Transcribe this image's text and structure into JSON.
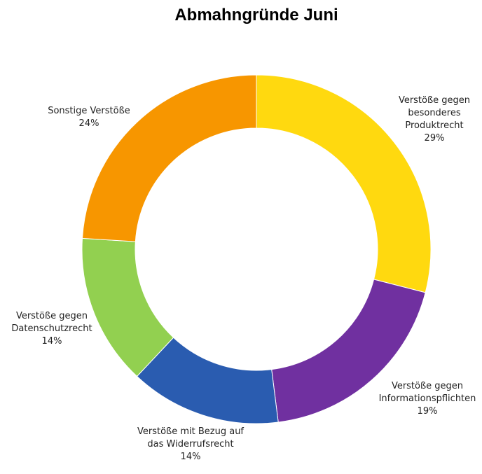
{
  "chart_data": {
    "type": "pie",
    "variant": "donut",
    "title": "Abmahngründe Juni",
    "slices": [
      {
        "lines": [
          "Verstöße gegen",
          "besonderes",
          "Produktrecht"
        ],
        "value": 29,
        "value_label": "29%",
        "color": "#FFD90F"
      },
      {
        "lines": [
          "Verstöße gegen",
          "Informationspflichten"
        ],
        "value": 19,
        "value_label": "19%",
        "color": "#7030A0"
      },
      {
        "lines": [
          "Verstöße mit Bezug auf",
          "das Widerrufsrecht"
        ],
        "value": 14,
        "value_label": "14%",
        "color": "#2A5CB0"
      },
      {
        "lines": [
          "Verstöße gegen",
          "Datenschutzrecht"
        ],
        "value": 14,
        "value_label": "14%",
        "color": "#92D050"
      },
      {
        "lines": [
          "Sonstige Verstöße"
        ],
        "value": 24,
        "value_label": "24%",
        "color": "#F79600"
      }
    ],
    "legend": "none"
  }
}
